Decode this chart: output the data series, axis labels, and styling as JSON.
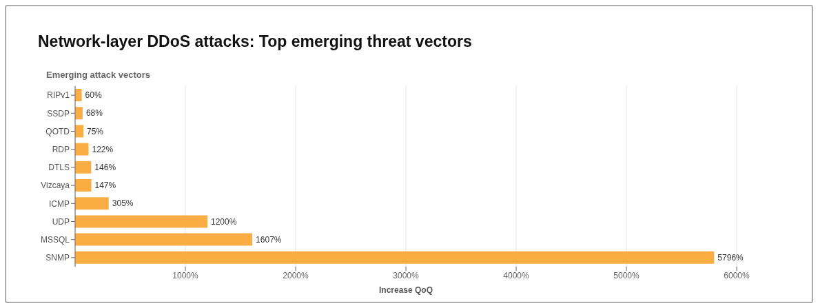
{
  "chart_data": {
    "type": "bar",
    "orientation": "horizontal",
    "title": "Network-layer DDoS attacks: Top emerging threat vectors",
    "subtitle": "Emerging attack vectors",
    "xlabel": "Increase QoQ",
    "categories": [
      "RIPv1",
      "SSDP",
      "QOTD",
      "RDP",
      "DTLS",
      "Vizcaya",
      "ICMP",
      "UDP",
      "MSSQL",
      "SNMP"
    ],
    "values": [
      60,
      68,
      75,
      122,
      146,
      147,
      305,
      1200,
      1607,
      5796
    ],
    "value_labels": [
      "60%",
      "68%",
      "75%",
      "122%",
      "146%",
      "147%",
      "305%",
      "1200%",
      "1607%",
      "5796%"
    ],
    "color": "#f9ad42",
    "xlim": [
      0,
      6000
    ],
    "xticks": [
      {
        "value": 1000,
        "label": "1000%"
      },
      {
        "value": 2000,
        "label": "2000%"
      },
      {
        "value": 3000,
        "label": "3000%"
      },
      {
        "value": 4000,
        "label": "4000%"
      },
      {
        "value": 5000,
        "label": "5000%"
      },
      {
        "value": 6000,
        "label": "6000%"
      }
    ],
    "grid": "x",
    "legend": false
  }
}
